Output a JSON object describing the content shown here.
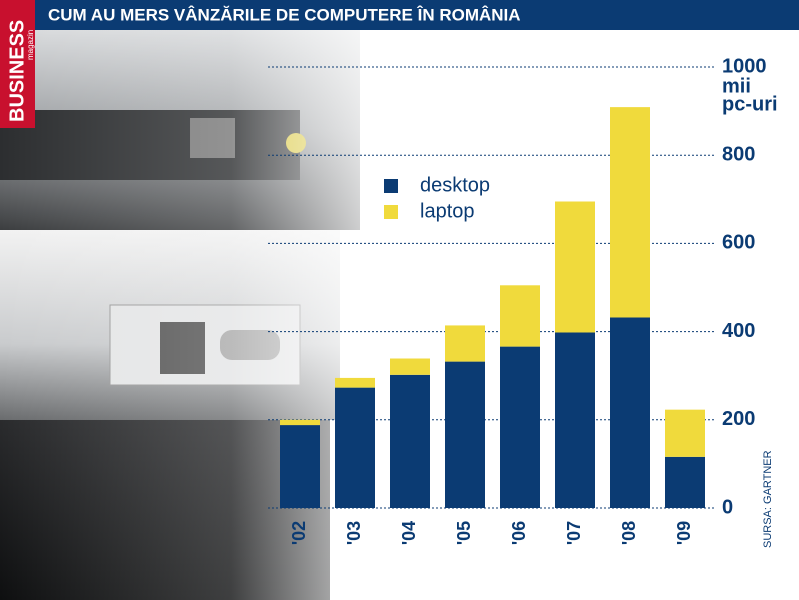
{
  "chart_data": {
    "type": "stacked-bar",
    "title": "CUM AU MERS VÂNZĂRILE DE COMPUTERE ÎN ROMÂNIA",
    "brand": "BUSINESS",
    "brand_sub": "magazin",
    "y_unit": [
      "mii",
      "pc-uri"
    ],
    "source": "SURSA: GARTNER",
    "categories": [
      "'02",
      "'03",
      "'04",
      "'05",
      "'06",
      "'07",
      "'08",
      "'09"
    ],
    "series": [
      {
        "name": "desktop",
        "color": "#0b3b73",
        "values": [
          188,
          273,
          302,
          332,
          366,
          398,
          432,
          116
        ]
      },
      {
        "name": "laptop",
        "color": "#f0da3c",
        "values": [
          12,
          22,
          37,
          82,
          139,
          297,
          477,
          107
        ]
      }
    ],
    "ylim": [
      0,
      1000
    ],
    "yticks": [
      0,
      200,
      400,
      600,
      800,
      1000
    ],
    "grid": true
  }
}
